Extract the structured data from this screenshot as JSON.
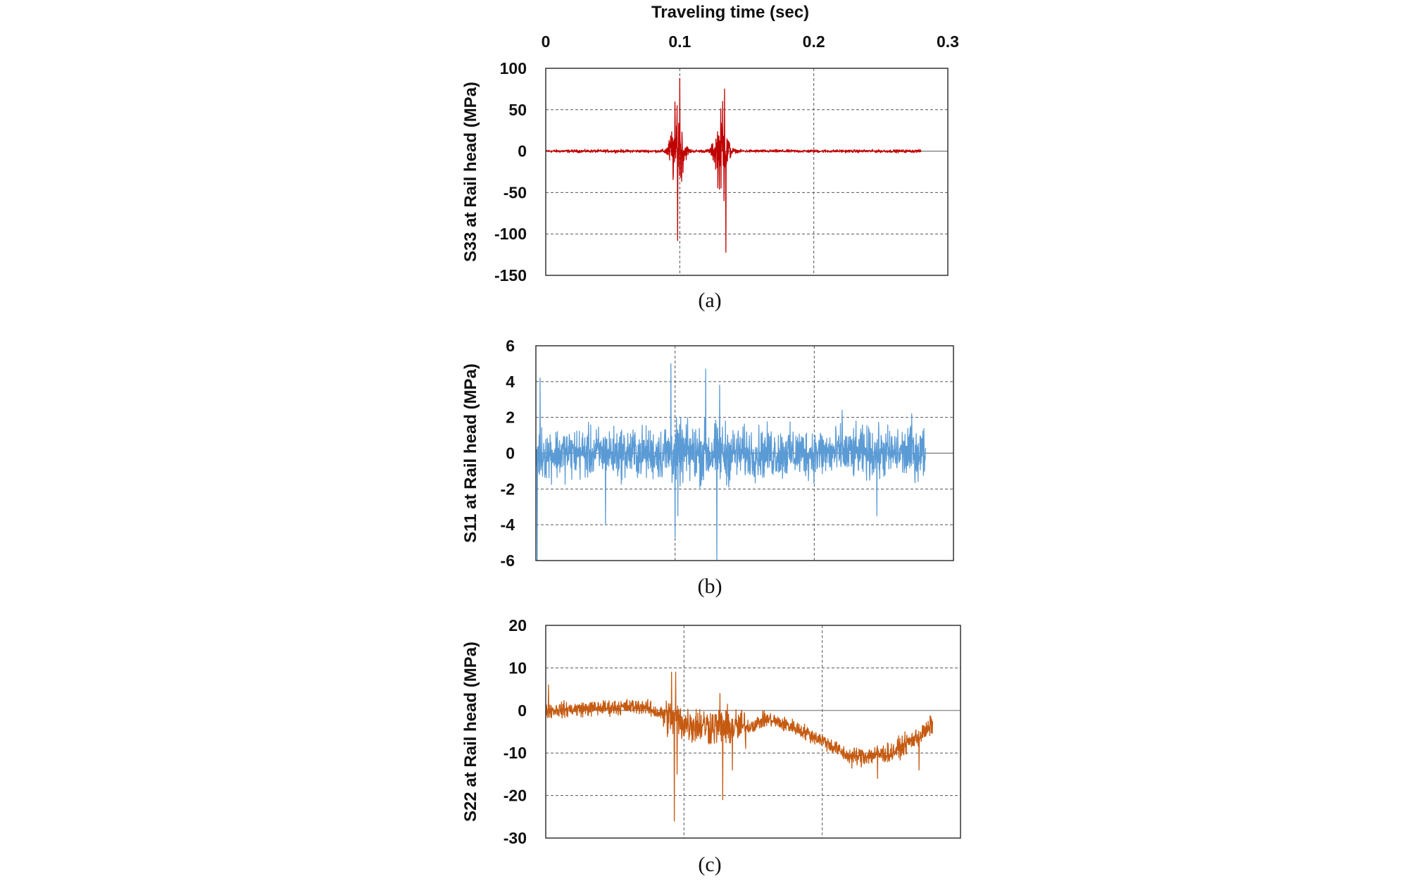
{
  "chart_data": [
    {
      "type": "line",
      "caption": "(a)",
      "xlabel": "Traveling time (sec)",
      "x_ticks": [
        "0",
        "0.1",
        "0.2",
        "0.3"
      ],
      "xlim": [
        0,
        0.3
      ],
      "ylabel": "S33 at Rail head (MPa)",
      "y_ticks": [
        "100",
        "50",
        "0",
        "-50",
        "-100",
        "-150"
      ],
      "ylim": [
        -150,
        100
      ],
      "grid": true,
      "color": "#c00000",
      "series": [
        {
          "x_range": [
            0,
            0.28
          ],
          "baseline_noise": 1.5,
          "bursts": [
            {
              "center": 0.098,
              "amplitude": 45,
              "width": 0.005
            },
            {
              "center": 0.131,
              "amplitude": 40,
              "width": 0.005
            }
          ],
          "peaks": [
            {
              "x": 0.1,
              "y": 88
            },
            {
              "x": 0.098,
              "y": 55
            },
            {
              "x": 0.0985,
              "y": -108
            },
            {
              "x": 0.1335,
              "y": 75
            },
            {
              "x": 0.132,
              "y": 60
            },
            {
              "x": 0.1345,
              "y": -122
            },
            {
              "x": 0.133,
              "y": -60
            }
          ]
        }
      ]
    },
    {
      "type": "line",
      "caption": "(b)",
      "ylabel": "S11 at Rail head (MPa)",
      "y_ticks": [
        "6",
        "4",
        "2",
        "0",
        "-2",
        "-4",
        "-6"
      ],
      "ylim": [
        -6,
        6
      ],
      "xlim": [
        0,
        0.3
      ],
      "grid": true,
      "color": "#5b9bd5",
      "series": [
        {
          "x_range": [
            0,
            0.28
          ],
          "baseline_noise": 1.2,
          "peaks": [
            {
              "x": 0.001,
              "y": -6
            },
            {
              "x": 0.003,
              "y": 4.2
            },
            {
              "x": 0.097,
              "y": 5
            },
            {
              "x": 0.1,
              "y": 4.8
            },
            {
              "x": 0.1,
              "y": -4.7
            },
            {
              "x": 0.102,
              "y": -3.5
            },
            {
              "x": 0.13,
              "y": -6
            },
            {
              "x": 0.132,
              "y": 3.8
            },
            {
              "x": 0.122,
              "y": 4.7
            },
            {
              "x": 0.05,
              "y": -4
            },
            {
              "x": 0.22,
              "y": 2.4
            },
            {
              "x": 0.245,
              "y": -3.5
            },
            {
              "x": 0.27,
              "y": 2.2
            }
          ]
        }
      ]
    },
    {
      "type": "line",
      "caption": "(c)",
      "ylabel": "S22 at Rail head (MPa)",
      "y_ticks": [
        "20",
        "10",
        "0",
        "-10",
        "-20",
        "-30"
      ],
      "ylim": [
        -30,
        20
      ],
      "xlim": [
        0,
        0.3
      ],
      "grid": true,
      "color": "#c55a11",
      "series": [
        {
          "x_range": [
            0,
            0.28
          ],
          "baseline_noise": 1.5,
          "trend": [
            {
              "x": 0,
              "y": 0
            },
            {
              "x": 0.07,
              "y": 1
            },
            {
              "x": 0.1,
              "y": -3
            },
            {
              "x": 0.13,
              "y": -4
            },
            {
              "x": 0.145,
              "y": -4
            },
            {
              "x": 0.16,
              "y": -2
            },
            {
              "x": 0.18,
              "y": -4
            },
            {
              "x": 0.2,
              "y": -7
            },
            {
              "x": 0.22,
              "y": -11
            },
            {
              "x": 0.25,
              "y": -10
            },
            {
              "x": 0.275,
              "y": -5
            },
            {
              "x": 0.28,
              "y": -3
            }
          ],
          "peaks": [
            {
              "x": 0.002,
              "y": 6
            },
            {
              "x": 0.091,
              "y": 9
            },
            {
              "x": 0.094,
              "y": 9
            },
            {
              "x": 0.093,
              "y": -26
            },
            {
              "x": 0.095,
              "y": -15
            },
            {
              "x": 0.126,
              "y": 4
            },
            {
              "x": 0.128,
              "y": -21
            },
            {
              "x": 0.135,
              "y": -14
            },
            {
              "x": 0.24,
              "y": -16
            },
            {
              "x": 0.27,
              "y": -14
            }
          ]
        }
      ]
    }
  ]
}
